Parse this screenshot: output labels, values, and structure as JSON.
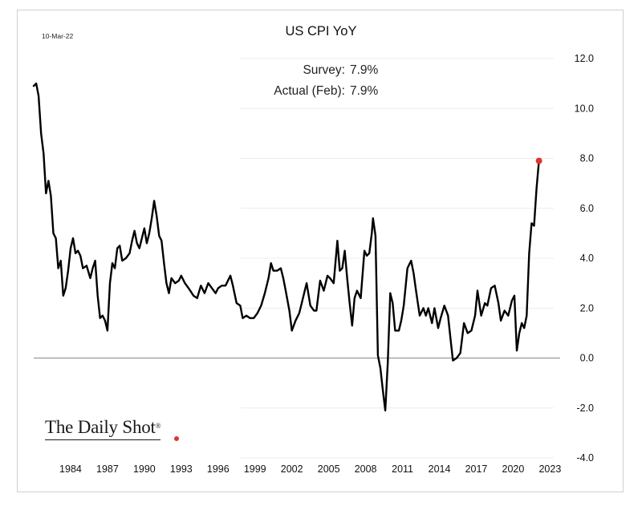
{
  "header": {
    "date": "10-Mar-22",
    "title": "US CPI YoY"
  },
  "annotation": {
    "survey_label": "Survey:",
    "survey_value": "7.9%",
    "actual_label": "Actual (Feb):",
    "actual_value": "7.9%"
  },
  "brand": {
    "name": "The Daily Shot",
    "mark": "®",
    "dot_color": "#e0342f"
  },
  "chart_data": {
    "type": "line",
    "title": "US CPI YoY",
    "xlabel": "",
    "ylabel": "",
    "xlim": [
      1981.0,
      2023.3
    ],
    "ylim": [
      -4.0,
      12.0
    ],
    "x_ticks": [
      "1984",
      "1987",
      "1990",
      "1993",
      "1996",
      "1999",
      "2002",
      "2005",
      "2008",
      "2011",
      "2014",
      "2017",
      "2020",
      "2023"
    ],
    "y_ticks": [
      "12.0",
      "10.0",
      "8.0",
      "6.0",
      "4.0",
      "2.0",
      "0.0",
      "-2.0",
      "-4.0"
    ],
    "y_axis_position": "right",
    "zero_line": true,
    "grid": "horizontal light",
    "line_color": "#000000",
    "highlight_color": "#e0342f",
    "last_point": {
      "x": 2022.1,
      "y": 7.9
    },
    "series": [
      {
        "values": [
          [
            1981.0,
            10.9
          ],
          [
            1981.2,
            11.0
          ],
          [
            1981.4,
            10.5
          ],
          [
            1981.6,
            9.0
          ],
          [
            1981.8,
            8.2
          ],
          [
            1982.0,
            6.6
          ],
          [
            1982.2,
            7.1
          ],
          [
            1982.4,
            6.5
          ],
          [
            1982.6,
            5.0
          ],
          [
            1982.8,
            4.8
          ],
          [
            1983.0,
            3.6
          ],
          [
            1983.2,
            3.9
          ],
          [
            1983.4,
            2.5
          ],
          [
            1983.6,
            2.8
          ],
          [
            1983.8,
            3.5
          ],
          [
            1984.0,
            4.4
          ],
          [
            1984.2,
            4.8
          ],
          [
            1984.4,
            4.2
          ],
          [
            1984.6,
            4.3
          ],
          [
            1984.8,
            4.1
          ],
          [
            1985.0,
            3.6
          ],
          [
            1985.3,
            3.7
          ],
          [
            1985.6,
            3.2
          ],
          [
            1985.8,
            3.6
          ],
          [
            1986.0,
            3.9
          ],
          [
            1986.2,
            2.5
          ],
          [
            1986.4,
            1.6
          ],
          [
            1986.6,
            1.7
          ],
          [
            1986.8,
            1.5
          ],
          [
            1987.0,
            1.1
          ],
          [
            1987.2,
            3.0
          ],
          [
            1987.4,
            3.8
          ],
          [
            1987.6,
            3.6
          ],
          [
            1987.8,
            4.4
          ],
          [
            1988.0,
            4.5
          ],
          [
            1988.2,
            3.9
          ],
          [
            1988.5,
            4.0
          ],
          [
            1988.8,
            4.2
          ],
          [
            1989.0,
            4.7
          ],
          [
            1989.2,
            5.1
          ],
          [
            1989.4,
            4.6
          ],
          [
            1989.6,
            4.4
          ],
          [
            1989.8,
            4.8
          ],
          [
            1990.0,
            5.2
          ],
          [
            1990.2,
            4.6
          ],
          [
            1990.4,
            5.0
          ],
          [
            1990.6,
            5.6
          ],
          [
            1990.8,
            6.3
          ],
          [
            1991.0,
            5.7
          ],
          [
            1991.2,
            4.9
          ],
          [
            1991.4,
            4.7
          ],
          [
            1991.6,
            3.8
          ],
          [
            1991.8,
            3.0
          ],
          [
            1992.0,
            2.6
          ],
          [
            1992.2,
            3.2
          ],
          [
            1992.5,
            3.0
          ],
          [
            1992.8,
            3.1
          ],
          [
            1993.0,
            3.3
          ],
          [
            1993.3,
            3.0
          ],
          [
            1993.6,
            2.8
          ],
          [
            1994.0,
            2.5
          ],
          [
            1994.3,
            2.4
          ],
          [
            1994.6,
            2.9
          ],
          [
            1994.9,
            2.6
          ],
          [
            1995.2,
            3.0
          ],
          [
            1995.5,
            2.8
          ],
          [
            1995.8,
            2.6
          ],
          [
            1996.0,
            2.8
          ],
          [
            1996.3,
            2.9
          ],
          [
            1996.6,
            2.9
          ],
          [
            1997.0,
            3.3
          ],
          [
            1997.2,
            2.9
          ],
          [
            1997.5,
            2.2
          ],
          [
            1997.8,
            2.1
          ],
          [
            1998.0,
            1.6
          ],
          [
            1998.3,
            1.7
          ],
          [
            1998.6,
            1.6
          ],
          [
            1998.9,
            1.6
          ],
          [
            1999.2,
            1.8
          ],
          [
            1999.5,
            2.1
          ],
          [
            1999.8,
            2.6
          ],
          [
            2000.1,
            3.2
          ],
          [
            2000.3,
            3.8
          ],
          [
            2000.5,
            3.5
          ],
          [
            2000.8,
            3.5
          ],
          [
            2001.1,
            3.6
          ],
          [
            2001.3,
            3.2
          ],
          [
            2001.5,
            2.7
          ],
          [
            2001.8,
            1.9
          ],
          [
            2002.0,
            1.1
          ],
          [
            2002.3,
            1.5
          ],
          [
            2002.6,
            1.8
          ],
          [
            2002.8,
            2.2
          ],
          [
            2003.0,
            2.6
          ],
          [
            2003.2,
            3.0
          ],
          [
            2003.5,
            2.1
          ],
          [
            2003.8,
            1.9
          ],
          [
            2004.0,
            1.9
          ],
          [
            2004.3,
            3.1
          ],
          [
            2004.6,
            2.7
          ],
          [
            2004.9,
            3.3
          ],
          [
            2005.1,
            3.2
          ],
          [
            2005.4,
            3.0
          ],
          [
            2005.7,
            4.7
          ],
          [
            2005.9,
            3.5
          ],
          [
            2006.1,
            3.6
          ],
          [
            2006.3,
            4.3
          ],
          [
            2006.5,
            3.2
          ],
          [
            2006.7,
            2.2
          ],
          [
            2006.9,
            1.3
          ],
          [
            2007.1,
            2.4
          ],
          [
            2007.3,
            2.7
          ],
          [
            2007.6,
            2.4
          ],
          [
            2007.9,
            4.3
          ],
          [
            2008.1,
            4.1
          ],
          [
            2008.3,
            4.2
          ],
          [
            2008.5,
            5.0
          ],
          [
            2008.6,
            5.6
          ],
          [
            2008.8,
            4.9
          ],
          [
            2009.0,
            0.1
          ],
          [
            2009.2,
            -0.4
          ],
          [
            2009.4,
            -1.3
          ],
          [
            2009.6,
            -2.1
          ],
          [
            2009.8,
            -0.2
          ],
          [
            2010.0,
            2.6
          ],
          [
            2010.2,
            2.2
          ],
          [
            2010.4,
            1.1
          ],
          [
            2010.7,
            1.1
          ],
          [
            2010.9,
            1.5
          ],
          [
            2011.1,
            2.1
          ],
          [
            2011.4,
            3.6
          ],
          [
            2011.7,
            3.9
          ],
          [
            2011.9,
            3.4
          ],
          [
            2012.1,
            2.7
          ],
          [
            2012.4,
            1.7
          ],
          [
            2012.7,
            2.0
          ],
          [
            2012.9,
            1.7
          ],
          [
            2013.1,
            2.0
          ],
          [
            2013.4,
            1.4
          ],
          [
            2013.6,
            2.0
          ],
          [
            2013.9,
            1.2
          ],
          [
            2014.1,
            1.6
          ],
          [
            2014.4,
            2.1
          ],
          [
            2014.7,
            1.7
          ],
          [
            2014.9,
            0.8
          ],
          [
            2015.1,
            -0.1
          ],
          [
            2015.4,
            0.0
          ],
          [
            2015.7,
            0.2
          ],
          [
            2016.0,
            1.4
          ],
          [
            2016.3,
            1.0
          ],
          [
            2016.6,
            1.1
          ],
          [
            2016.9,
            1.7
          ],
          [
            2017.1,
            2.7
          ],
          [
            2017.4,
            1.7
          ],
          [
            2017.7,
            2.2
          ],
          [
            2017.9,
            2.1
          ],
          [
            2018.2,
            2.8
          ],
          [
            2018.5,
            2.9
          ],
          [
            2018.8,
            2.2
          ],
          [
            2019.0,
            1.5
          ],
          [
            2019.3,
            1.9
          ],
          [
            2019.6,
            1.7
          ],
          [
            2019.9,
            2.3
          ],
          [
            2020.1,
            2.5
          ],
          [
            2020.3,
            0.3
          ],
          [
            2020.5,
            1.0
          ],
          [
            2020.7,
            1.4
          ],
          [
            2020.9,
            1.2
          ],
          [
            2021.1,
            1.7
          ],
          [
            2021.3,
            4.2
          ],
          [
            2021.5,
            5.4
          ],
          [
            2021.7,
            5.3
          ],
          [
            2021.9,
            6.8
          ],
          [
            2022.1,
            7.9
          ]
        ]
      }
    ]
  }
}
